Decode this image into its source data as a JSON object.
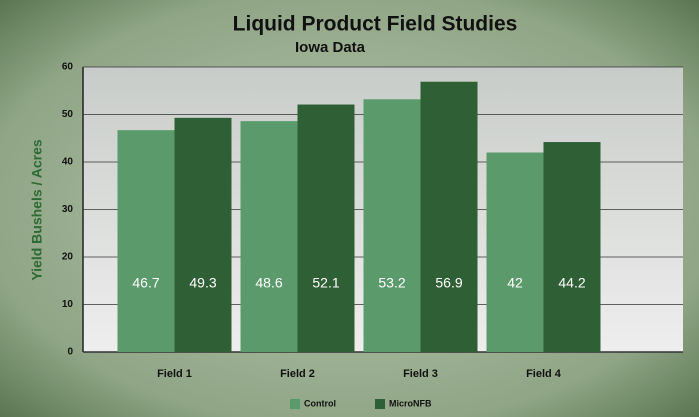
{
  "chart_data": {
    "type": "bar",
    "title": "Liquid Product Field Studies",
    "subtitle": "Iowa Data",
    "y_label": "Yield Bushels / Acres",
    "categories": [
      "Field 1",
      "Field 2",
      "Field 3",
      "Field 4"
    ],
    "series": [
      {
        "name": "Control",
        "color": "#5b9b6b",
        "values": [
          46.7,
          48.6,
          53.2,
          42
        ]
      },
      {
        "name": "MicroNFB",
        "color": "#2f5f35",
        "values": [
          49.3,
          52.1,
          56.9,
          44.2
        ]
      }
    ],
    "ylim": [
      0,
      60
    ],
    "yticks": [
      0,
      10,
      20,
      30,
      40,
      50,
      60
    ],
    "grid": true,
    "legend": "bottom"
  }
}
